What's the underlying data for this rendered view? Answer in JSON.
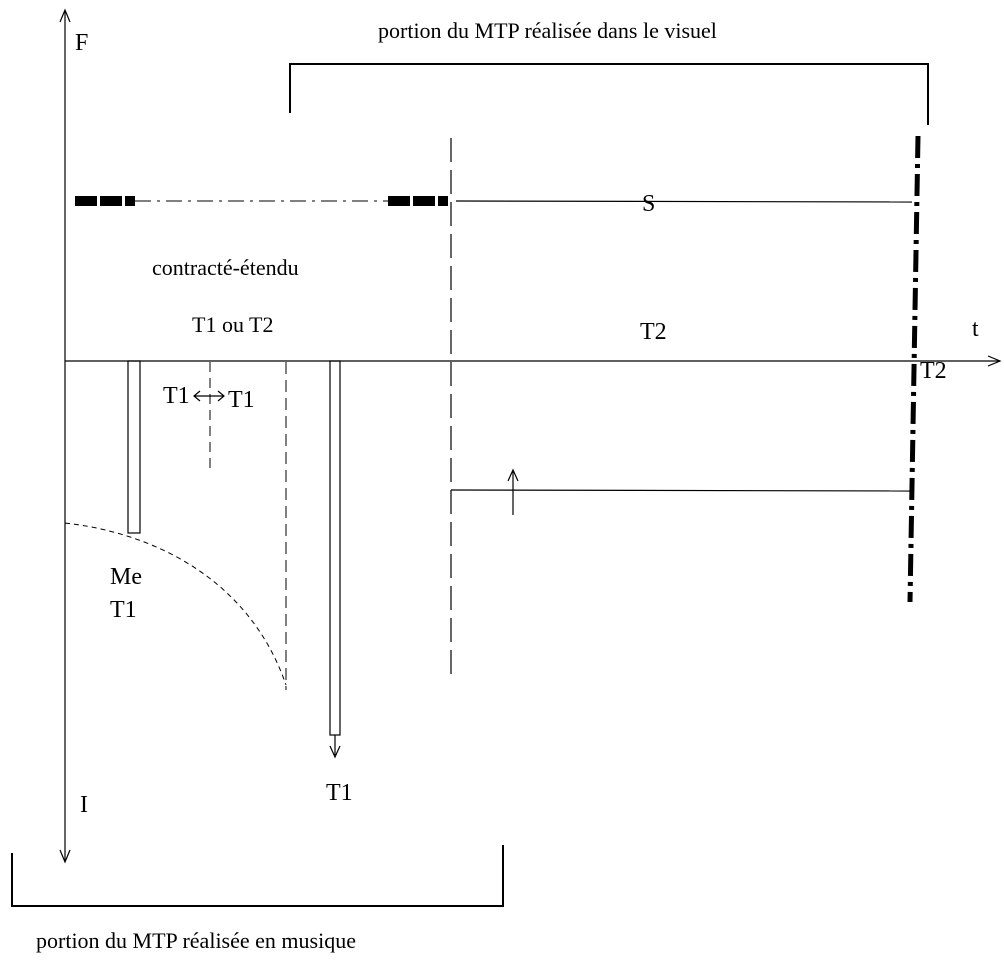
{
  "labels": {
    "top_bracket": "portion du MTP réalisée dans le visuel",
    "bottom_bracket": "portion du MTP réalisée en musique",
    "y_axis_top": "F",
    "y_axis_bottom": "I",
    "x_axis": "t",
    "s_line": "S",
    "region_left_1": "contracté-étendu",
    "region_left_2": "T1 ou T2",
    "region_right": "T2",
    "right_below_axis": "T2",
    "t1_left": "T1",
    "t1_right": "T1",
    "me": "Me",
    "me_t1": "T1",
    "bar_bottom": "T1"
  },
  "colors": {
    "ink": "#000000",
    "background": "#ffffff"
  }
}
